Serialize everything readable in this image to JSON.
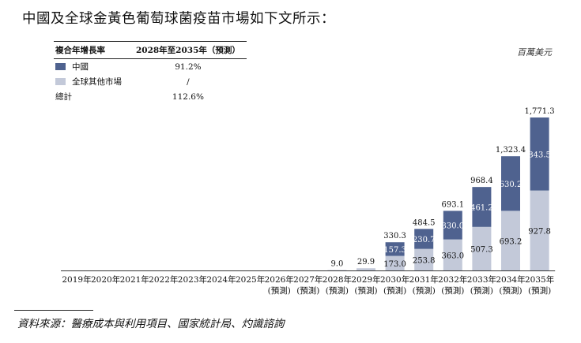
{
  "heading": "中國及全球金黃色葡萄球菌疫苗市場如下文所示：",
  "cagr_table": {
    "header_label": "複合年增長率",
    "header_period": "2028年至2035年（預測）",
    "rows": [
      {
        "label": "中國",
        "value": "91.2%",
        "swatch": "#4f628f"
      },
      {
        "label": "全球其他市場",
        "value": "/",
        "swatch": "#c3c9d9"
      },
      {
        "label": "總計",
        "value": "112.6%"
      }
    ]
  },
  "unit_label": "百萬美元",
  "source": "資料來源：醫療成本與利用項目、國家統計局、灼識諮詢",
  "colors": {
    "china": "#4f628f",
    "rest": "#c3c9d9"
  },
  "chart_data": {
    "type": "bar",
    "stacked": true,
    "categories": [
      "2019年",
      "2020年",
      "2021年",
      "2022年",
      "2023年",
      "2024年",
      "2025年",
      "2026年",
      "2027年",
      "2028年",
      "2029年",
      "2030年",
      "2031年",
      "2032年",
      "2033年",
      "2034年",
      "2035年"
    ],
    "category_sublabels": [
      "",
      "",
      "",
      "",
      "",
      "",
      "",
      "(預測)",
      "(預測)",
      "(預測)",
      "(預測)",
      "(預測)",
      "(預測)",
      "(預測)",
      "(預測)",
      "(預測)",
      "(預測)"
    ],
    "series": [
      {
        "name": "全球其他市場",
        "values": [
          0,
          0,
          0,
          0,
          0,
          0,
          0,
          0,
          0,
          9.0,
          29.9,
          173.0,
          253.8,
          363.0,
          507.3,
          693.2,
          927.8
        ]
      },
      {
        "name": "中國",
        "values": [
          0,
          0,
          0,
          0,
          0,
          0,
          0,
          0,
          0,
          0,
          0,
          157.3,
          230.7,
          330.0,
          461.2,
          630.2,
          843.5
        ]
      }
    ],
    "bottom_labels": [
      "",
      "",
      "",
      "",
      "",
      "",
      "",
      "",
      "",
      "",
      "",
      "173.0",
      "253.8",
      "363.0",
      "507.3",
      "693.2",
      "927.8"
    ],
    "middle_labels": [
      "",
      "",
      "",
      "",
      "",
      "",
      "",
      "",
      "",
      "",
      "",
      "157.3",
      "230.7",
      "330.0",
      "461.2",
      "630.2",
      "843.5"
    ],
    "total_labels": [
      "",
      "",
      "",
      "",
      "",
      "",
      "",
      "",
      "",
      "9.0",
      "29.9",
      "330.3",
      "484.5",
      "693.1",
      "968.4",
      "1,323.4",
      "1,771.3"
    ],
    "ylim": [
      0,
      1771.3
    ]
  }
}
